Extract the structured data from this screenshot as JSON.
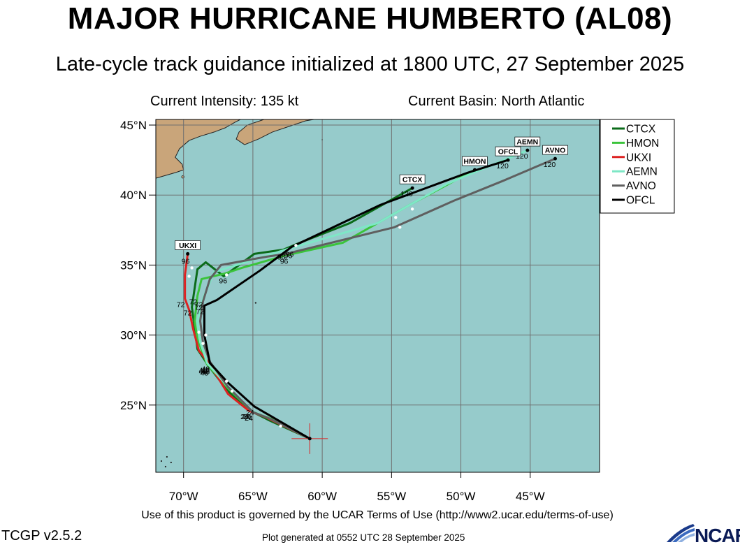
{
  "header": {
    "title": "MAJOR HURRICANE HUMBERTO (AL08)",
    "subtitle": "Late-cycle track guidance initialized at 1800 UTC, 27 September 2025",
    "intensity": "Current Intensity: 135 kt",
    "basin": "Current Basin: North Atlantic"
  },
  "footer": {
    "terms": "Use of this product is governed by the UCAR Terms of Use (http://www2.ucar.edu/terms-of-use)",
    "version": "TCGP v2.5.2",
    "generated": "Plot generated at 0552 UTC   28 September 2025",
    "logo_text": "NCAR"
  },
  "chart_data": {
    "type": "map_track",
    "x_ticks": [
      "70°W",
      "65°W",
      "60°W",
      "55°W",
      "50°W",
      "45°W"
    ],
    "y_ticks": [
      "45°N",
      "40°N",
      "35°N",
      "30°N",
      "25°N"
    ],
    "lon_range": [
      -72,
      -40
    ],
    "lat_range": [
      20.2,
      45.4
    ],
    "current_position": {
      "lon": -60.9,
      "lat": 22.6
    },
    "legend_position": "top-right",
    "series": [
      {
        "name": "CTCX",
        "color": "#0b6b1a",
        "points": [
          [
            -60.9,
            22.6
          ],
          [
            -63.8,
            23.9
          ],
          [
            -65.2,
            24.6
          ],
          [
            -66.8,
            26.0
          ],
          [
            -68.2,
            27.8
          ],
          [
            -69.0,
            29.0
          ],
          [
            -69.2,
            30.5
          ],
          [
            -69.4,
            32.0
          ],
          [
            -69.0,
            34.7
          ],
          [
            -68.4,
            35.2
          ],
          [
            -67.1,
            34.2
          ],
          [
            -64.9,
            35.8
          ],
          [
            -62.8,
            36.1
          ],
          [
            -61.6,
            36.6
          ],
          [
            -58.0,
            38.0
          ],
          [
            -53.5,
            40.5
          ]
        ],
        "tau_labels": [
          {
            "text": "24",
            "lon": -65.2,
            "lat": 24.6
          },
          {
            "text": "48",
            "lon": -68.2,
            "lat": 27.8
          },
          {
            "text": "72",
            "lon": -69.4,
            "lat": 32.0
          },
          {
            "text": "96",
            "lon": -62.8,
            "lat": 36.1
          },
          {
            "text": "120",
            "lon": -53.5,
            "lat": 40.5
          }
        ],
        "end_label": "CTCX"
      },
      {
        "name": "HMON",
        "color": "#3bc43b",
        "points": [
          [
            -60.9,
            22.6
          ],
          [
            -63.6,
            24.0
          ],
          [
            -65.0,
            24.5
          ],
          [
            -66.8,
            26.2
          ],
          [
            -68.3,
            27.9
          ],
          [
            -69.0,
            29.7
          ],
          [
            -69.2,
            31.0
          ],
          [
            -69.0,
            32.8
          ],
          [
            -68.7,
            34.0
          ],
          [
            -67.0,
            34.4
          ],
          [
            -65.8,
            34.8
          ],
          [
            -62.6,
            35.7
          ],
          [
            -58.5,
            36.6
          ],
          [
            -53.5,
            39.4
          ],
          [
            -49.0,
            41.8
          ]
        ],
        "tau_labels": [
          {
            "text": "24",
            "lon": -65.0,
            "lat": 24.5
          },
          {
            "text": "48",
            "lon": -68.3,
            "lat": 27.9
          },
          {
            "text": "72",
            "lon": -69.0,
            "lat": 32.8
          },
          {
            "text": "96",
            "lon": -67.0,
            "lat": 34.4
          }
        ],
        "end_label": "HMON"
      },
      {
        "name": "UKXI",
        "color": "#dd2222",
        "points": [
          [
            -60.9,
            22.6
          ],
          [
            -64.0,
            24.1
          ],
          [
            -65.3,
            24.6
          ],
          [
            -66.8,
            25.8
          ],
          [
            -68.1,
            27.9
          ],
          [
            -68.9,
            28.9
          ],
          [
            -69.3,
            30.4
          ],
          [
            -69.6,
            31.8
          ],
          [
            -69.9,
            32.6
          ],
          [
            -69.9,
            34.3
          ],
          [
            -69.7,
            35.8
          ]
        ],
        "tau_labels": [
          {
            "text": "24",
            "lon": -65.3,
            "lat": 24.6
          },
          {
            "text": "48",
            "lon": -68.1,
            "lat": 27.9
          },
          {
            "text": "72",
            "lon": -69.9,
            "lat": 32.6
          },
          {
            "text": "96",
            "lon": -69.7,
            "lat": 35.8
          }
        ],
        "end_label": "UKXI"
      },
      {
        "name": "AEMN",
        "color": "#7ee7c6",
        "points": [
          [
            -60.9,
            22.6
          ],
          [
            -63.7,
            24.0
          ],
          [
            -65.1,
            24.6
          ],
          [
            -66.8,
            26.3
          ],
          [
            -68.3,
            28.0
          ],
          [
            -68.8,
            29.5
          ],
          [
            -69.0,
            31.0
          ],
          [
            -68.6,
            32.6
          ],
          [
            -67.8,
            34.5
          ],
          [
            -62.3,
            36.2
          ],
          [
            -56.0,
            38.0
          ],
          [
            -51.0,
            40.8
          ],
          [
            -45.2,
            43.2
          ]
        ],
        "tau_labels": [
          {
            "text": "24",
            "lon": -65.1,
            "lat": 24.6
          },
          {
            "text": "48",
            "lon": -68.3,
            "lat": 28.0
          },
          {
            "text": "72",
            "lon": -68.6,
            "lat": 32.6
          },
          {
            "text": "96",
            "lon": -62.3,
            "lat": 36.2
          },
          {
            "text": "120",
            "lon": -45.2,
            "lat": 43.2
          }
        ],
        "end_label": "AEMN"
      },
      {
        "name": "AVNO",
        "color": "#5f5f5f",
        "points": [
          [
            -60.9,
            22.6
          ],
          [
            -63.7,
            24.0
          ],
          [
            -65.0,
            24.5
          ],
          [
            -66.8,
            26.3
          ],
          [
            -68.1,
            28.1
          ],
          [
            -68.6,
            29.5
          ],
          [
            -68.8,
            31.0
          ],
          [
            -68.6,
            32.4
          ],
          [
            -68.1,
            34.0
          ],
          [
            -67.3,
            35.0
          ],
          [
            -64.0,
            35.6
          ],
          [
            -62.6,
            35.8
          ],
          [
            -54.8,
            37.7
          ],
          [
            -50.5,
            39.6
          ],
          [
            -47.0,
            41.0
          ],
          [
            -43.2,
            42.6
          ]
        ],
        "tau_labels": [
          {
            "text": "24",
            "lon": -65.0,
            "lat": 24.5
          },
          {
            "text": "48",
            "lon": -68.1,
            "lat": 28.1
          },
          {
            "text": "72",
            "lon": -68.6,
            "lat": 32.4
          },
          {
            "text": "96",
            "lon": -62.6,
            "lat": 35.8
          },
          {
            "text": "120",
            "lon": -43.2,
            "lat": 42.6
          }
        ],
        "end_label": "AVNO"
      },
      {
        "name": "OFCL",
        "color": "#000000",
        "points": [
          [
            -60.9,
            22.6
          ],
          [
            -64.9,
            24.9
          ],
          [
            -66.8,
            26.6
          ],
          [
            -68.1,
            28.0
          ],
          [
            -68.5,
            30.0
          ],
          [
            -68.5,
            32.1
          ],
          [
            -67.6,
            32.5
          ],
          [
            -64.5,
            34.6
          ],
          [
            -62.2,
            36.3
          ],
          [
            -55.8,
            39.3
          ],
          [
            -49.5,
            41.6
          ],
          [
            -46.6,
            42.5
          ]
        ],
        "tau_labels": [
          {
            "text": "24",
            "lon": -64.9,
            "lat": 24.9
          },
          {
            "text": "48",
            "lon": -68.1,
            "lat": 28.0
          },
          {
            "text": "72",
            "lon": -68.5,
            "lat": 32.1
          },
          {
            "text": "96",
            "lon": -62.2,
            "lat": 36.3
          },
          {
            "text": "120",
            "lon": -46.6,
            "lat": 42.5
          }
        ],
        "end_label": "OFCL"
      }
    ]
  }
}
